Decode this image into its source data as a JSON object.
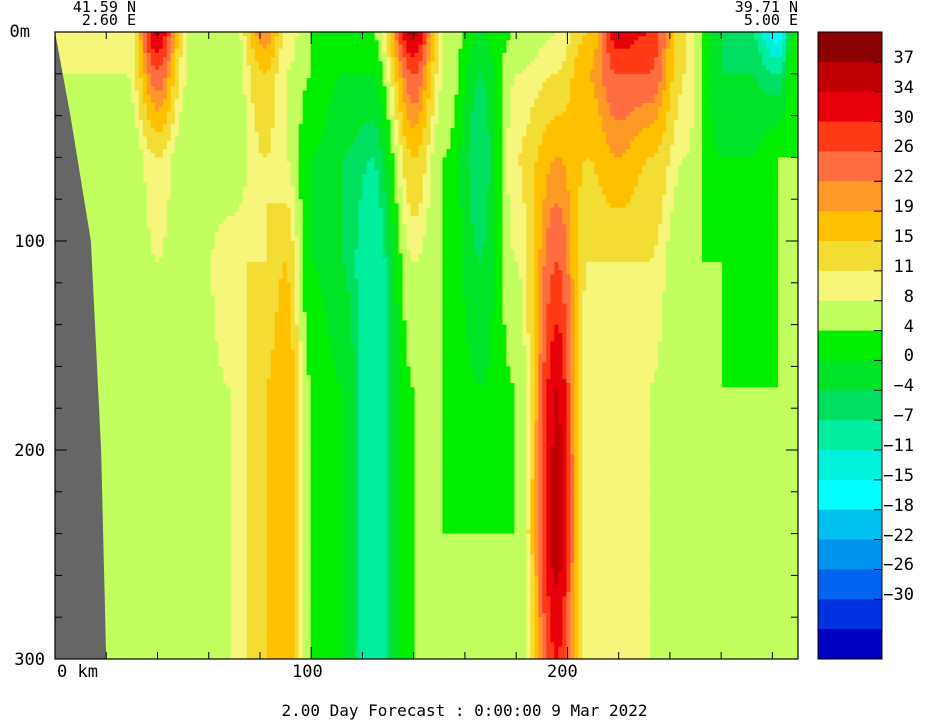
{
  "corner_labels": {
    "left_lat": "41.59 N",
    "left_lon": "2.60 E",
    "right_lat": "39.71 N",
    "right_lon": "5.00 E"
  },
  "axis": {
    "y_unit_label": "0m",
    "x_unit_label": "0 km"
  },
  "footer": "2.00 Day Forecast :  0:00:00   9 Mar 2022",
  "chart_data": {
    "type": "heatmap",
    "title": "",
    "xlabel": "km",
    "ylabel": "m",
    "xlim": [
      0,
      290
    ],
    "ylim": [
      300,
      0
    ],
    "x_ticks": [
      "0",
      "100",
      "200"
    ],
    "y_ticks": [
      "0m",
      "100",
      "200",
      "300"
    ],
    "x_minor_ticks": [
      20,
      40,
      60,
      80,
      100,
      120,
      140,
      160,
      180,
      200,
      220,
      240,
      260,
      280
    ],
    "y_minor_ticks": [
      20,
      40,
      60,
      80,
      100,
      120,
      140,
      160,
      180,
      200,
      220,
      240,
      260,
      280
    ],
    "colorbar": {
      "labels": [
        "37",
        "34",
        "30",
        "26",
        "22",
        "19",
        "15",
        "11",
        "8",
        "4",
        "0",
        "−4",
        "−7",
        "−11",
        "−15",
        "−18",
        "−22",
        "−26",
        "−30"
      ],
      "colors": [
        "#8b0000",
        "#c00000",
        "#e8000a",
        "#ff3a14",
        "#ff6e40",
        "#ff9926",
        "#ffc000",
        "#f3dc33",
        "#f6f67a",
        "#c2ff5e",
        "#00ee00",
        "#00e326",
        "#00e060",
        "#00ef9e",
        "#00f2dc",
        "#00ffff",
        "#00c0f0",
        "#0094f0",
        "#0064f0",
        "#0032e0",
        "#0000c0"
      ]
    },
    "land_color": "#666666",
    "columns": [
      {
        "x": 8,
        "profile": [
          8,
          8,
          4,
          4,
          4,
          4,
          4
        ]
      },
      {
        "x": 28,
        "profile": [
          8,
          8,
          4,
          4,
          4,
          4,
          4
        ]
      },
      {
        "x": 40,
        "profile": [
          35,
          25,
          11,
          8,
          4,
          4,
          4
        ]
      },
      {
        "x": 52,
        "profile": [
          8,
          8,
          4,
          4,
          4,
          4,
          4
        ]
      },
      {
        "x": 68,
        "profile": [
          4,
          4,
          4,
          11,
          8,
          8,
          8
        ]
      },
      {
        "x": 82,
        "profile": [
          22,
          15,
          11,
          11,
          15,
          15,
          15
        ]
      },
      {
        "x": 90,
        "profile": [
          11,
          8,
          8,
          15,
          19,
          19,
          19
        ]
      },
      {
        "x": 100,
        "profile": [
          4,
          4,
          0,
          0,
          4,
          4,
          4
        ]
      },
      {
        "x": 112,
        "profile": [
          0,
          0,
          -4,
          -4,
          0,
          0,
          0
        ]
      },
      {
        "x": 124,
        "profile": [
          4,
          0,
          -7,
          -11,
          -11,
          -11,
          -11
        ]
      },
      {
        "x": 140,
        "profile": [
          36,
          26,
          15,
          8,
          4,
          4,
          4
        ]
      },
      {
        "x": 152,
        "profile": [
          8,
          8,
          4,
          4,
          4,
          4,
          4
        ]
      },
      {
        "x": 166,
        "profile": [
          0,
          -4,
          -7,
          -4,
          0,
          4,
          4
        ]
      },
      {
        "x": 180,
        "profile": [
          4,
          8,
          11,
          8,
          4,
          4,
          4
        ]
      },
      {
        "x": 196,
        "profile": [
          8,
          11,
          19,
          26,
          34,
          37,
          30
        ]
      },
      {
        "x": 208,
        "profile": [
          15,
          19,
          15,
          11,
          8,
          8,
          8
        ]
      },
      {
        "x": 220,
        "profile": [
          33,
          26,
          19,
          11,
          8,
          8,
          8
        ]
      },
      {
        "x": 232,
        "profile": [
          30,
          26,
          15,
          11,
          8,
          8,
          8
        ]
      },
      {
        "x": 246,
        "profile": [
          11,
          11,
          8,
          4,
          4,
          4,
          4
        ]
      },
      {
        "x": 260,
        "profile": [
          -4,
          -4,
          0,
          4,
          4,
          4,
          4
        ]
      },
      {
        "x": 272,
        "profile": [
          -7,
          -4,
          0,
          0,
          4,
          4,
          4
        ]
      },
      {
        "x": 282,
        "profile": [
          -18,
          -7,
          4,
          4,
          4,
          8,
          4
        ]
      },
      {
        "x": 290,
        "profile": [
          4,
          4,
          4,
          4,
          4,
          4,
          4
        ]
      }
    ],
    "profile_depths": [
      0,
      20,
      60,
      110,
      170,
      240,
      300
    ],
    "land_boundary": [
      {
        "depth": 0,
        "x": 0
      },
      {
        "depth": 40,
        "x": 6
      },
      {
        "depth": 100,
        "x": 14
      },
      {
        "depth": 200,
        "x": 18
      },
      {
        "depth": 300,
        "x": 20
      }
    ]
  }
}
